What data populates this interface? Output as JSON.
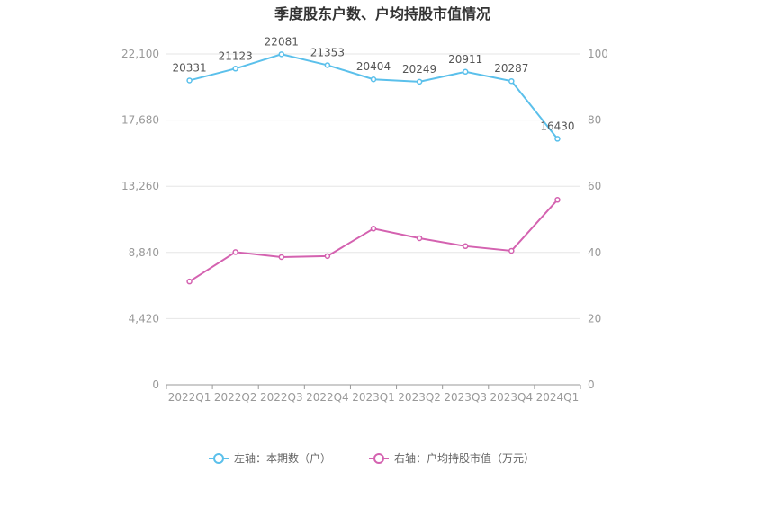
{
  "chart_data": {
    "type": "line",
    "title": "季度股东户数、户均持股市值情况",
    "categories": [
      "2022Q1",
      "2022Q2",
      "2022Q3",
      "2022Q4",
      "2023Q1",
      "2023Q2",
      "2023Q3",
      "2023Q4",
      "2024Q1"
    ],
    "left_axis": {
      "ylim": [
        0,
        22100
      ],
      "ticks": [
        0,
        4420,
        8840,
        13260,
        17680,
        22100
      ],
      "tick_labels": [
        "0",
        "4,420",
        "8,840",
        "13,260",
        "17,680",
        "22,100"
      ]
    },
    "right_axis": {
      "ylim": [
        0,
        100
      ],
      "ticks": [
        0,
        20,
        40,
        60,
        80,
        100
      ],
      "tick_labels": [
        "0",
        "20",
        "40",
        "60",
        "80",
        "100"
      ]
    },
    "series": [
      {
        "name": "左轴：本期数（户）",
        "axis": "left",
        "color": "#5bc0eb",
        "values": [
          20331,
          21123,
          22081,
          21353,
          20404,
          20249,
          20911,
          20287,
          16430
        ],
        "data_labels": [
          "20331",
          "21123",
          "22081",
          "21353",
          "20404",
          "20249",
          "20911",
          "20287",
          "16430"
        ]
      },
      {
        "name": "右轴：户均持股市值（万元）",
        "axis": "right",
        "color": "#d462b0",
        "values": [
          31.2,
          40.1,
          38.6,
          38.9,
          47.2,
          44.3,
          41.9,
          40.5,
          55.9
        ]
      }
    ],
    "grid": true,
    "legend_position": "bottom"
  }
}
